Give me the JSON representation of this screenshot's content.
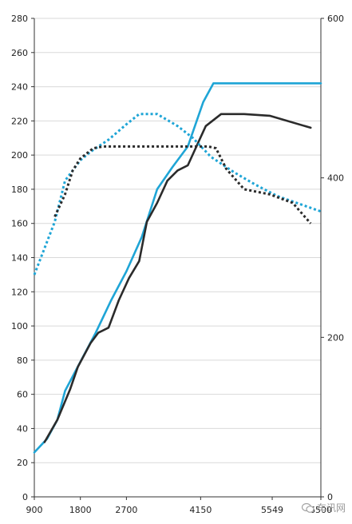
{
  "chart_data": {
    "type": "line",
    "x": [
      900,
      1800,
      2700,
      4150,
      5549,
      6500
    ],
    "xlim": [
      900,
      6500
    ],
    "x_ticks": [
      "900",
      "1800",
      "2700",
      "4150",
      "5549",
      "6500"
    ],
    "ylim_left": [
      0,
      280
    ],
    "y_ticks_left": [
      "0",
      "20",
      "40",
      "60",
      "80",
      "100",
      "120",
      "140",
      "160",
      "180",
      "200",
      "220",
      "240",
      "260",
      "280"
    ],
    "ylim_right": [
      0,
      600
    ],
    "y_ticks_right": [
      "0",
      "200",
      "400",
      "600"
    ],
    "grid": "horizontal",
    "series": [
      {
        "style": "solid",
        "color": "#1fa5d6",
        "axis": "left",
        "points": [
          [
            900,
            26
          ],
          [
            1150,
            34
          ],
          [
            1350,
            45
          ],
          [
            1500,
            62
          ],
          [
            1800,
            79
          ],
          [
            2100,
            96
          ],
          [
            2400,
            115
          ],
          [
            2700,
            132
          ],
          [
            3000,
            152
          ],
          [
            3300,
            180
          ],
          [
            3600,
            193
          ],
          [
            3900,
            205
          ],
          [
            4200,
            231
          ],
          [
            4400,
            242
          ],
          [
            5000,
            242
          ],
          [
            6500,
            242
          ]
        ]
      },
      {
        "style": "solid",
        "color": "#2b2b2b",
        "axis": "left",
        "points": [
          [
            1100,
            32
          ],
          [
            1350,
            45
          ],
          [
            1600,
            63
          ],
          [
            1750,
            76
          ],
          [
            2000,
            90
          ],
          [
            2150,
            96
          ],
          [
            2350,
            99
          ],
          [
            2550,
            115
          ],
          [
            2750,
            128
          ],
          [
            2950,
            138
          ],
          [
            3100,
            161
          ],
          [
            3300,
            172
          ],
          [
            3500,
            185
          ],
          [
            3700,
            191
          ],
          [
            3900,
            194
          ],
          [
            4250,
            217
          ],
          [
            4550,
            224
          ],
          [
            5000,
            224
          ],
          [
            5500,
            223
          ],
          [
            6300,
            216
          ]
        ]
      },
      {
        "style": "dotted",
        "color": "#1fa5d6",
        "axis": "left",
        "points": [
          [
            900,
            130
          ],
          [
            1300,
            161
          ],
          [
            1500,
            185
          ],
          [
            1800,
            197
          ],
          [
            2000,
            202
          ],
          [
            2350,
            209
          ],
          [
            2700,
            218
          ],
          [
            2950,
            224
          ],
          [
            3300,
            224
          ],
          [
            3700,
            217
          ],
          [
            4000,
            210
          ],
          [
            4350,
            199
          ],
          [
            4800,
            190
          ],
          [
            5200,
            183
          ],
          [
            5650,
            176
          ],
          [
            6500,
            167
          ]
        ]
      },
      {
        "style": "dotted",
        "color": "#2b2b2b",
        "axis": "left",
        "points": [
          [
            1300,
            164
          ],
          [
            1500,
            177
          ],
          [
            1650,
            191
          ],
          [
            1800,
            198
          ],
          [
            2050,
            204
          ],
          [
            2250,
            205
          ],
          [
            4300,
            205
          ],
          [
            4450,
            204
          ],
          [
            4650,
            192
          ],
          [
            5000,
            180
          ],
          [
            5500,
            177
          ],
          [
            5950,
            172
          ],
          [
            6300,
            160
          ]
        ]
      }
    ]
  },
  "watermark": {
    "text": "车讯网",
    "icon": "wechat-icon"
  }
}
